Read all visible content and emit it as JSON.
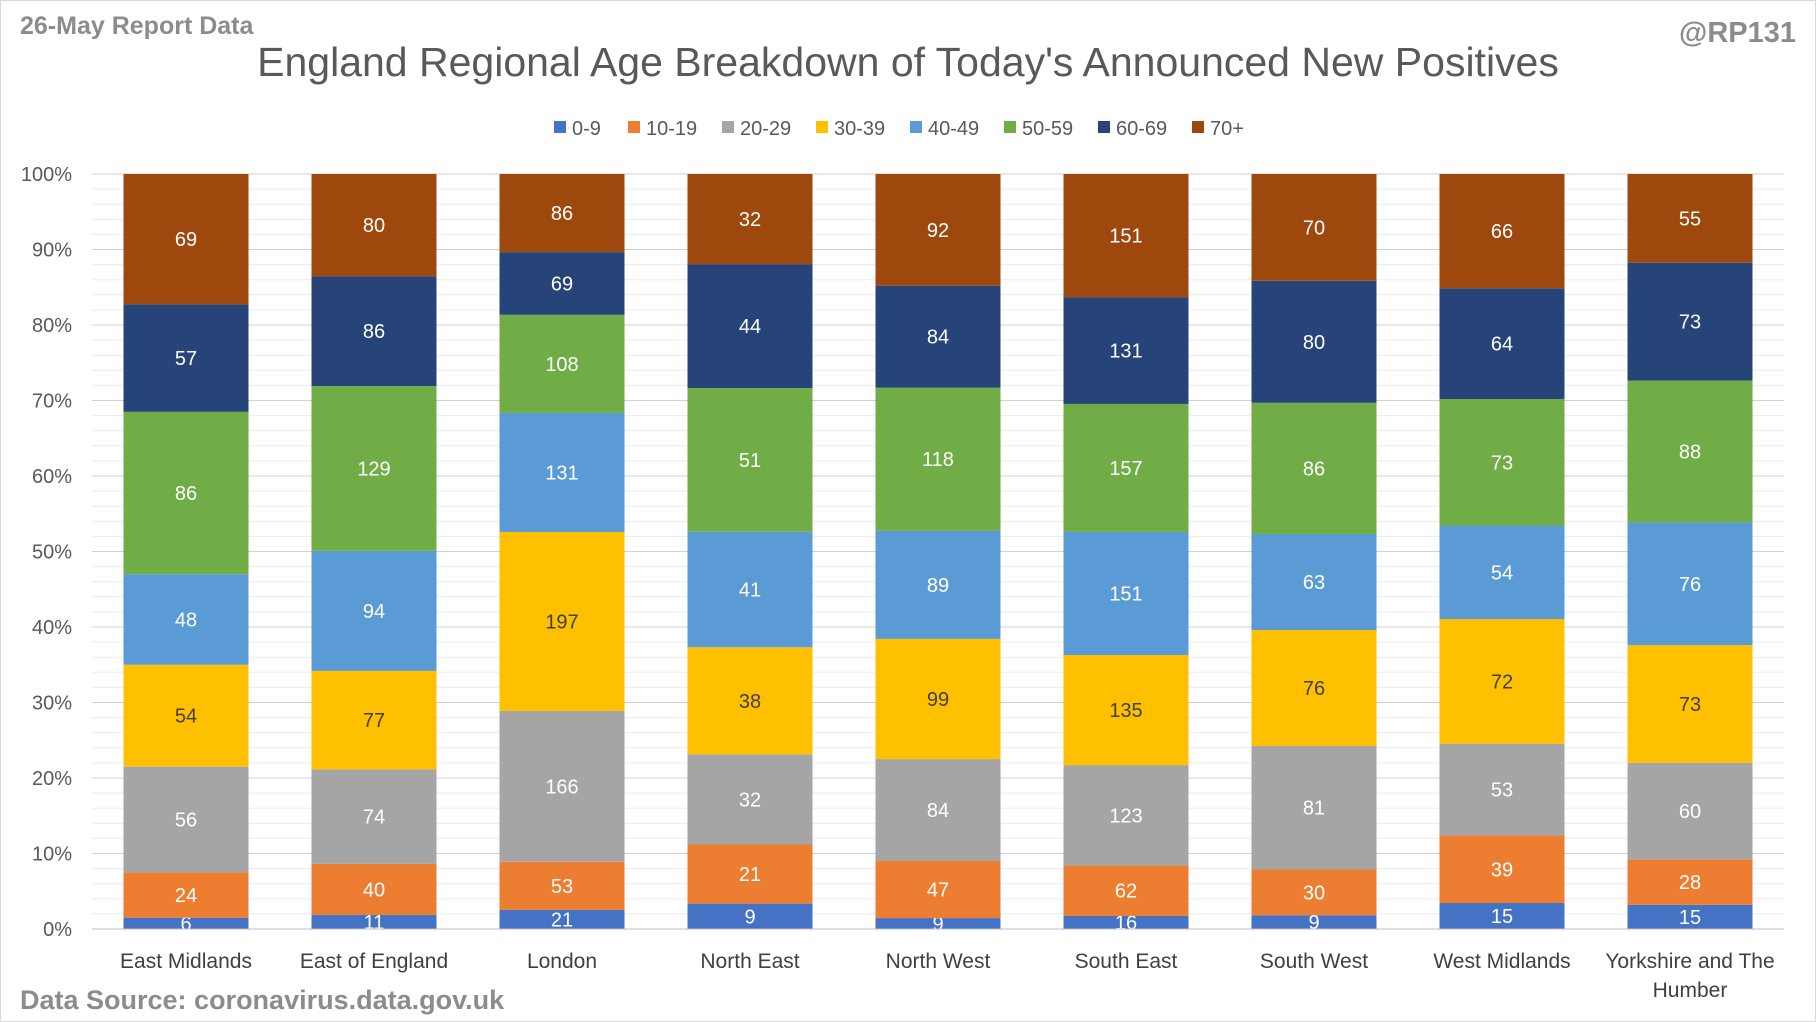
{
  "header": {
    "report_date": "26-May Report Data",
    "handle": "@RP131"
  },
  "footer": {
    "source": "Data Source: coronavirus.data.gov.uk"
  },
  "chart_data": {
    "type": "bar",
    "stacked": "percent",
    "title": "England Regional Age Breakdown of Today's Announced New Positives",
    "xlabel": "",
    "ylabel": "",
    "ylim": [
      0,
      100
    ],
    "y_ticks": [
      "0%",
      "10%",
      "20%",
      "30%",
      "40%",
      "50%",
      "60%",
      "70%",
      "80%",
      "90%",
      "100%"
    ],
    "grid": true,
    "legend": "top",
    "categories": [
      "East Midlands",
      "East of England",
      "London",
      "North East",
      "North West",
      "South East",
      "South West",
      "West Midlands",
      "Yorkshire and The Humber"
    ],
    "series": [
      {
        "name": "0-9",
        "color": "#4472c4",
        "label_color": "#ffffff",
        "values": [
          6,
          11,
          21,
          9,
          9,
          16,
          9,
          15,
          15
        ]
      },
      {
        "name": "10-19",
        "color": "#ed7d31",
        "label_color": "#ffffff",
        "values": [
          24,
          40,
          53,
          21,
          47,
          62,
          30,
          39,
          28
        ]
      },
      {
        "name": "20-29",
        "color": "#a5a5a5",
        "label_color": "#ffffff",
        "values": [
          56,
          74,
          166,
          32,
          84,
          123,
          81,
          53,
          60
        ]
      },
      {
        "name": "30-39",
        "color": "#ffc000",
        "label_color": "#404040",
        "values": [
          54,
          77,
          197,
          38,
          99,
          135,
          76,
          72,
          73
        ]
      },
      {
        "name": "40-49",
        "color": "#5b9bd5",
        "label_color": "#ffffff",
        "values": [
          48,
          94,
          131,
          41,
          89,
          151,
          63,
          54,
          76
        ]
      },
      {
        "name": "50-59",
        "color": "#70ad47",
        "label_color": "#ffffff",
        "values": [
          86,
          129,
          108,
          51,
          118,
          157,
          86,
          73,
          88
        ]
      },
      {
        "name": "60-69",
        "color": "#264478",
        "label_color": "#ffffff",
        "values": [
          57,
          86,
          69,
          44,
          84,
          131,
          80,
          64,
          73
        ]
      },
      {
        "name": "70+",
        "color": "#9e480e",
        "label_color": "#ffffff",
        "values": [
          69,
          80,
          86,
          32,
          92,
          151,
          70,
          66,
          55
        ]
      }
    ]
  }
}
